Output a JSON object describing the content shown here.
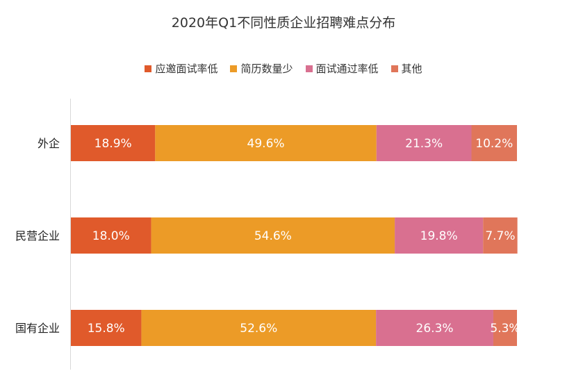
{
  "chart_data": {
    "type": "bar",
    "orientation": "horizontal",
    "stacked": true,
    "title": "2020年Q1不同性质企业招聘难点分布",
    "categories": [
      "外企",
      "民营企业",
      "国有企业"
    ],
    "series": [
      {
        "name": "应邀面试率低",
        "color": "#e05a2b",
        "values": [
          18.9,
          18.0,
          15.8
        ]
      },
      {
        "name": "简历数量少",
        "color": "#ec9b27",
        "values": [
          49.6,
          54.6,
          52.6
        ]
      },
      {
        "name": "面试通过率低",
        "color": "#d97090",
        "values": [
          21.3,
          19.8,
          26.3
        ]
      },
      {
        "name": "其他",
        "color": "#e0765a",
        "values": [
          10.2,
          7.7,
          5.3
        ]
      }
    ],
    "value_suffix": "%",
    "xlim": [
      0,
      100
    ],
    "grid": false,
    "legend_position": "top"
  }
}
